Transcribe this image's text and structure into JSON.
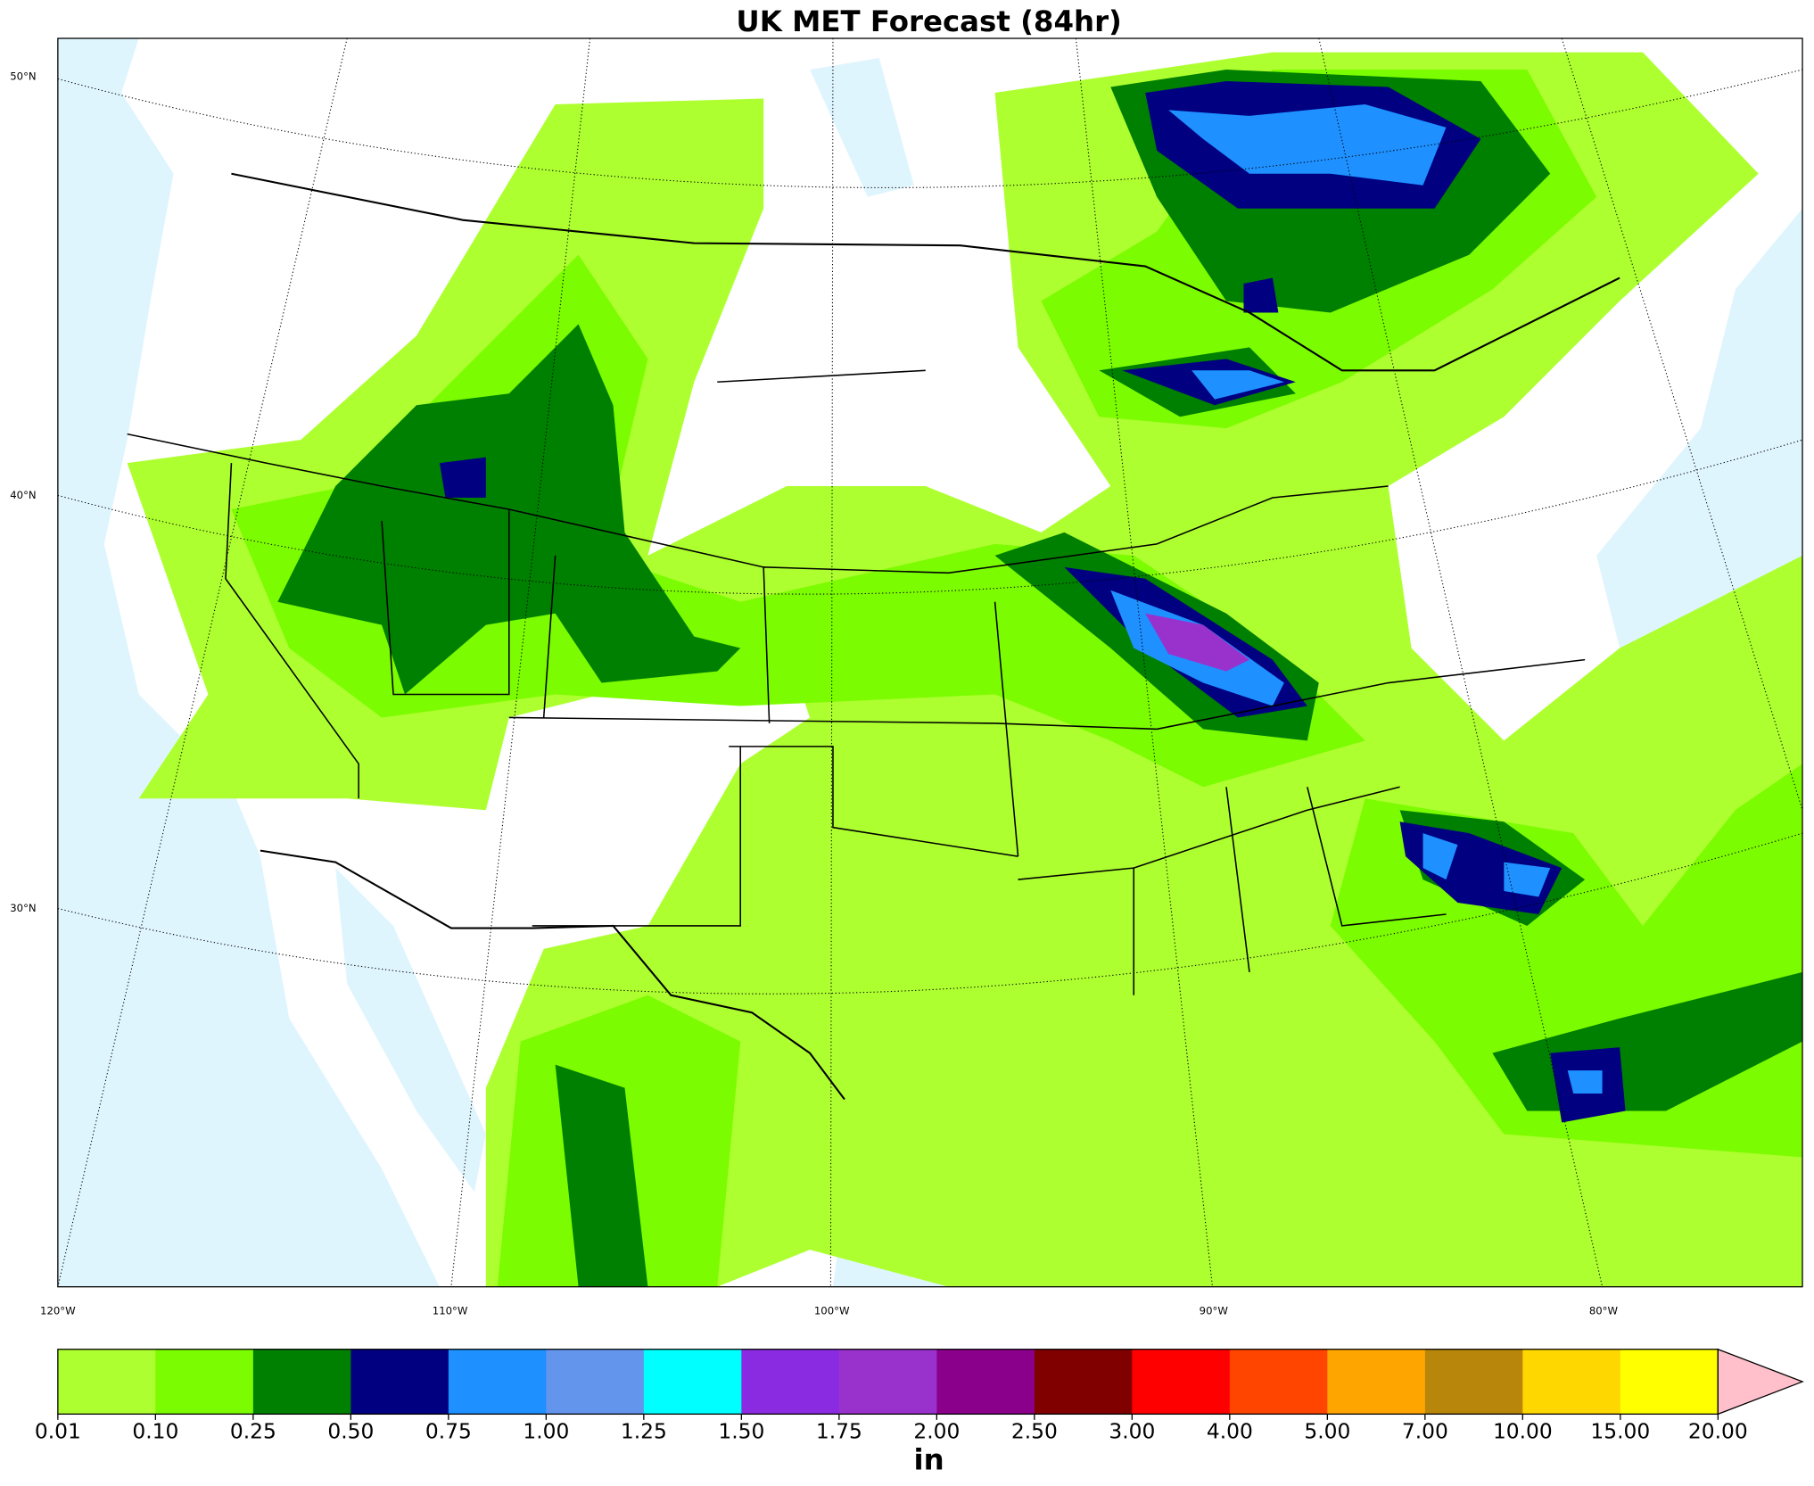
{
  "title": "UK MET Forecast (84hr)",
  "map": {
    "lat_labels": [
      "50°N",
      "40°N",
      "30°N"
    ],
    "lon_labels": [
      "120°W",
      "110°W",
      "100°W",
      "90°W",
      "80°W"
    ]
  },
  "colorbar": {
    "label": "in",
    "extend_color": "#ffc0cb",
    "ticks": [
      0.01,
      {
        "value": 0.1,
        "label": "0.10"
      },
      0.25,
      {
        "value": 0.5,
        "label": "0.50"
      },
      0.75,
      {
        "value": 1,
        "label": "1.00"
      },
      1.25,
      {
        "value": 1.5,
        "label": "1.50"
      },
      1.75,
      {
        "value": 2,
        "label": "2.00"
      },
      {
        "value": 2.5,
        "label": "2.50"
      },
      {
        "value": 3,
        "label": "3.00"
      },
      {
        "value": 4,
        "label": "4.00"
      },
      {
        "value": 5,
        "label": "5.00"
      },
      {
        "value": 7,
        "label": "7.00"
      },
      {
        "value": 10,
        "label": "10.00"
      },
      {
        "value": 15,
        "label": "15.00"
      },
      {
        "value": 20,
        "label": "20.00"
      }
    ],
    "colors": [
      "#adff2f",
      "#7cfc00",
      "#008000",
      "#000080",
      "#1e90ff",
      "#6495ed",
      "#00ffff",
      "#8a2be2",
      "#9932cc",
      "#8b008b",
      "#800000",
      "#ff0000",
      "#ff4500",
      "#ffa500",
      "#b8860b",
      "#ffd700",
      "#ffff00"
    ]
  }
}
